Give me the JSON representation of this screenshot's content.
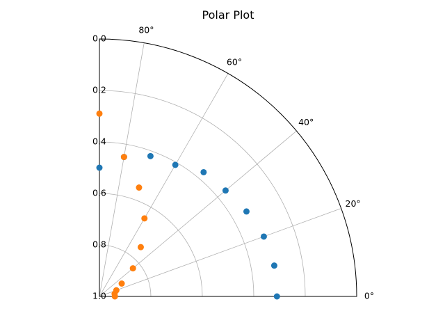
{
  "chart_data": {
    "type": "scatter",
    "projection": "polar",
    "title": "Polar Plot",
    "theta_unit": "degrees",
    "theta_range": [
      0,
      90
    ],
    "theta_ticks": [
      0,
      20,
      40,
      60,
      80
    ],
    "theta_tick_labels": [
      "0°",
      "20°",
      "40°",
      "60°",
      "80°"
    ],
    "r_range": [
      1.0,
      0.0
    ],
    "r_axis_inverted": true,
    "r_ticks": [
      0.0,
      0.2,
      0.4,
      0.6,
      0.8,
      1.0
    ],
    "r_tick_labels": [
      "0.0",
      "0.2",
      "0.4",
      "0.6",
      "0.8",
      "1.0"
    ],
    "grid": true,
    "series": [
      {
        "color": "#1f77b4",
        "theta": [
          0,
          10,
          20,
          30,
          40,
          50,
          60,
          70,
          80,
          90
        ],
        "r": [
          0.31,
          0.31,
          0.32,
          0.34,
          0.36,
          0.37,
          0.41,
          0.42,
          0.45,
          0.5
        ]
      },
      {
        "color": "#ff7f0e",
        "theta": [
          0,
          10,
          20,
          30,
          40,
          50,
          60,
          70,
          80,
          90
        ],
        "r": [
          0.94,
          0.94,
          0.93,
          0.9,
          0.83,
          0.75,
          0.65,
          0.55,
          0.45,
          0.29
        ]
      }
    ]
  }
}
